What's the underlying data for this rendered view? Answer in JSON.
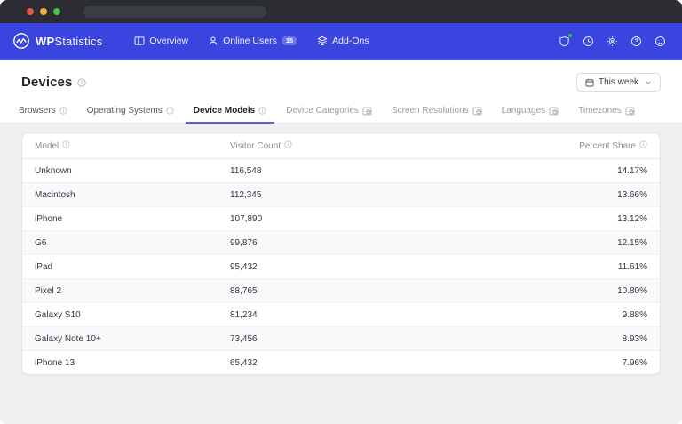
{
  "window": {
    "traffic_lights": [
      "close",
      "minimize",
      "zoom"
    ],
    "address_bar_text": ""
  },
  "navbar": {
    "brand_bold": "WP",
    "brand_light": "Statistics",
    "items": [
      {
        "label": "Overview",
        "icon": "overview-icon"
      },
      {
        "label": "Online Users",
        "icon": "users-icon",
        "badge": "15"
      },
      {
        "label": "Add-Ons",
        "icon": "addons-icon"
      }
    ],
    "right_icons": [
      "privacy-shield-icon",
      "realtime-clock-icon",
      "settings-gear-icon",
      "help-icon",
      "feedback-smiley-icon"
    ]
  },
  "header": {
    "title": "Devices",
    "date_filter_label": "This week"
  },
  "tabs": [
    {
      "label": "Browsers",
      "state": "normal",
      "icon": "info"
    },
    {
      "label": "Operating Systems",
      "state": "normal",
      "icon": "info"
    },
    {
      "label": "Device Models",
      "state": "active",
      "icon": "info"
    },
    {
      "label": "Device Categories",
      "state": "locked",
      "icon": "lock"
    },
    {
      "label": "Screen Resolutions",
      "state": "locked",
      "icon": "lock"
    },
    {
      "label": "Languages",
      "state": "locked",
      "icon": "lock"
    },
    {
      "label": "Timezones",
      "state": "locked",
      "icon": "lock"
    }
  ],
  "table": {
    "columns": [
      "Model",
      "Visitor Count",
      "Percent Share"
    ],
    "rows": [
      {
        "model": "Unknown",
        "visitors": "116,548",
        "share": "14.17%"
      },
      {
        "model": "Macintosh",
        "visitors": "112,345",
        "share": "13.66%"
      },
      {
        "model": "iPhone",
        "visitors": "107,890",
        "share": "13.12%"
      },
      {
        "model": "G6",
        "visitors": "99,876",
        "share": "12.15%"
      },
      {
        "model": "iPad",
        "visitors": "95,432",
        "share": "11.61%"
      },
      {
        "model": "Pixel 2",
        "visitors": "88,765",
        "share": "10.80%"
      },
      {
        "model": "Galaxy S10",
        "visitors": "81,234",
        "share": "9.88%"
      },
      {
        "model": "Galaxy Note 10+",
        "visitors": "73,456",
        "share": "8.93%"
      },
      {
        "model": "iPhone 13",
        "visitors": "65,432",
        "share": "7.96%"
      }
    ]
  },
  "colors": {
    "nav-blue": "#3a44de",
    "page-bg": "#eef0f2",
    "accent-underline": "#5c63d6",
    "green-dot": "#35c759"
  }
}
